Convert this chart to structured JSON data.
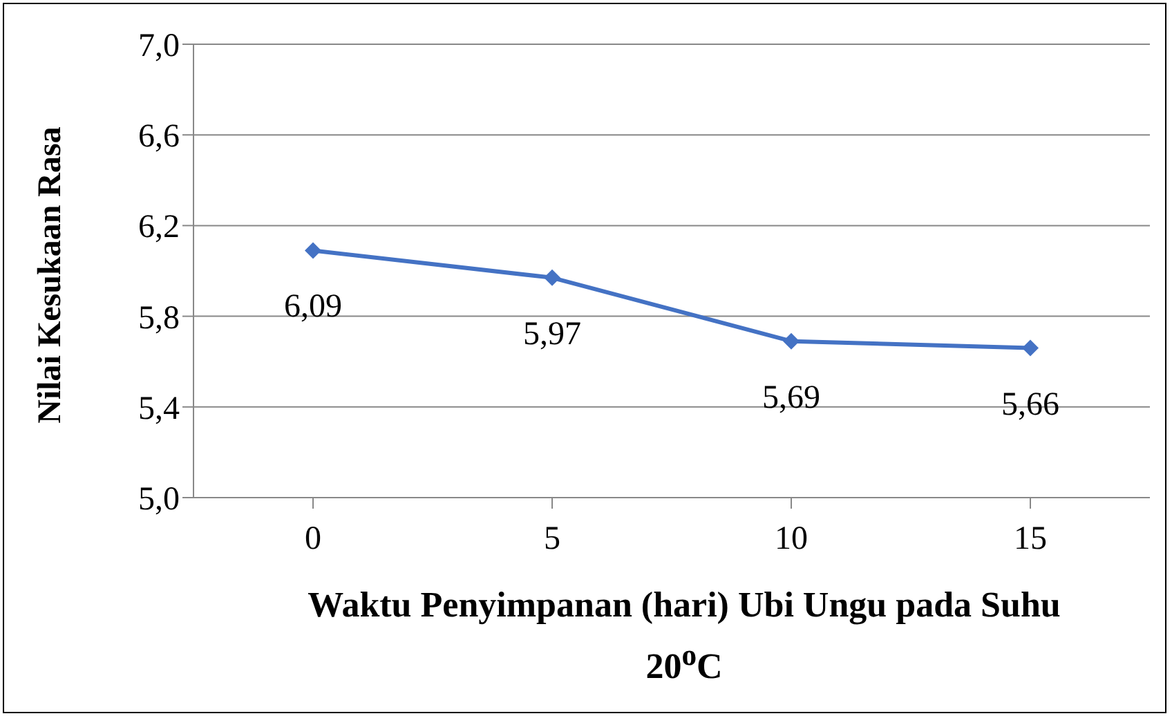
{
  "chart_data": {
    "type": "line",
    "xlabel": "Waktu Penyimpanan (hari) Ubi Ungu pada Suhu 20$^{o}$C",
    "ylabel": "Nilai Kesukaan Rasa",
    "categories": [
      "0",
      "5",
      "10",
      "15"
    ],
    "series": [
      {
        "color": "#4472c4",
        "values": [
          6.09,
          5.97,
          5.69,
          5.66
        ],
        "value_labels": [
          "6,09",
          "5,97",
          "5,69",
          "5,66"
        ]
      }
    ],
    "ylim": [
      5.0,
      7.0
    ],
    "yticks": [
      {
        "value": 5.0,
        "label": "5,0"
      },
      {
        "value": 5.4,
        "label": "5,4"
      },
      {
        "value": 5.8,
        "label": "5,8"
      },
      {
        "value": 6.2,
        "label": "6,2"
      },
      {
        "value": 6.6,
        "label": "6,6"
      },
      {
        "value": 7.0,
        "label": "7,0"
      }
    ],
    "grid": "y",
    "legend": false,
    "marker": "diamond",
    "line_style": "solid"
  }
}
